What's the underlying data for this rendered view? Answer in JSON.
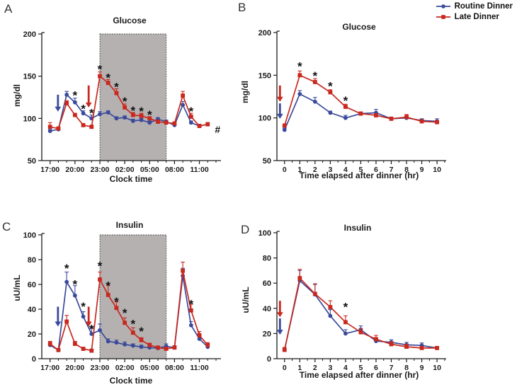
{
  "figure": {
    "background": "#ffffff",
    "shade_color": "#b5b1b1",
    "axis_color": "#1a1a1a",
    "legend": {
      "items": [
        {
          "label": "Routine Dinner",
          "color": "#3A4A9B",
          "marker": "circle"
        },
        {
          "label": "Late Dinner",
          "color": "#C8281E",
          "marker": "square"
        }
      ]
    }
  },
  "chart_data": [
    {
      "panel_label": "A",
      "type": "line",
      "title": "Glucose",
      "xlabel": "Clock time",
      "ylabel": "mg/dl",
      "ylim": [
        50,
        200
      ],
      "yticks": [
        50,
        100,
        150,
        200
      ],
      "xlim": [
        -1.0,
        20.6
      ],
      "xticks": [
        {
          "x": 0,
          "label": "17:00"
        },
        {
          "x": 3,
          "label": "20:00"
        },
        {
          "x": 6,
          "label": "23:00"
        },
        {
          "x": 9,
          "label": "02:00"
        },
        {
          "x": 12,
          "label": "05:00"
        },
        {
          "x": 15,
          "label": "08:00"
        },
        {
          "x": 18,
          "label": "11:00"
        }
      ],
      "x_minor": {
        "from": 0,
        "to": 20,
        "step": 1
      },
      "x": [
        0,
        1,
        2,
        3,
        4,
        5,
        6,
        7,
        8,
        9,
        10,
        11,
        12,
        13,
        14,
        15,
        16,
        17,
        18,
        19
      ],
      "shade": {
        "x0": 6,
        "x1": 14
      },
      "series": [
        {
          "name": "Routine Dinner",
          "color": "#3A4A9B",
          "marker": "circle",
          "values": [
            85,
            87,
            128,
            119,
            106,
            100,
            105,
            107,
            100,
            101,
            97,
            98,
            95,
            99,
            96,
            92,
            116,
            95,
            91,
            93
          ],
          "err": [
            2,
            2,
            4,
            5,
            3,
            4,
            3,
            2,
            2,
            2,
            2,
            2,
            2,
            2,
            2,
            2,
            4,
            2,
            2,
            2
          ]
        },
        {
          "name": "Late Dinner",
          "color": "#C8281E",
          "marker": "square",
          "values": [
            90,
            88,
            118,
            104,
            92,
            90,
            150,
            142,
            130,
            113,
            104,
            103,
            100,
            96,
            95,
            94,
            127,
            102,
            91,
            93
          ],
          "err": [
            5,
            2,
            3,
            2,
            2,
            2,
            5,
            4,
            5,
            4,
            3,
            3,
            2,
            2,
            2,
            2,
            5,
            4,
            2,
            2
          ]
        }
      ],
      "asterisks": [
        {
          "x": 3,
          "y": 130
        },
        {
          "x": 4,
          "y": 114
        },
        {
          "x": 5,
          "y": 109
        },
        {
          "x": 6,
          "y": 161
        },
        {
          "x": 7,
          "y": 151
        },
        {
          "x": 8,
          "y": 140
        },
        {
          "x": 9,
          "y": 123
        },
        {
          "x": 10,
          "y": 112
        },
        {
          "x": 11,
          "y": 111
        },
        {
          "x": 12,
          "y": 107
        },
        {
          "x": 17,
          "y": 111
        }
      ],
      "arrows": [
        {
          "series": "Routine Dinner",
          "x": 0.95,
          "y_from": 128,
          "y_to": 108
        },
        {
          "series": "Late Dinner",
          "x": 4.65,
          "y_from": 139,
          "y_to": 113
        }
      ],
      "annotations": [
        {
          "x": 20.2,
          "y": 87,
          "text": "#"
        }
      ]
    },
    {
      "panel_label": "B",
      "type": "line",
      "title": "Glucose",
      "xlabel": "Time elapsed after dinner (hr)",
      "ylabel": "mg/dl",
      "ylim": [
        50,
        200
      ],
      "yticks": [
        50,
        100,
        150,
        200
      ],
      "xlim": [
        -0.5,
        10.6
      ],
      "xticks": [
        {
          "x": 0,
          "label": "0"
        },
        {
          "x": 1,
          "label": "1"
        },
        {
          "x": 2,
          "label": "2"
        },
        {
          "x": 3,
          "label": "3"
        },
        {
          "x": 4,
          "label": "4"
        },
        {
          "x": 5,
          "label": "5"
        },
        {
          "x": 6,
          "label": "6"
        },
        {
          "x": 7,
          "label": "7"
        },
        {
          "x": 8,
          "label": "8"
        },
        {
          "x": 9,
          "label": "9"
        },
        {
          "x": 10,
          "label": "10"
        }
      ],
      "x_minor": {
        "from": 0.5,
        "to": 10.5,
        "step": 1
      },
      "x": [
        0,
        1,
        2,
        3,
        4,
        5,
        6,
        7,
        8,
        9,
        10
      ],
      "shade": null,
      "series": [
        {
          "name": "Routine Dinner",
          "color": "#3A4A9B",
          "marker": "circle",
          "values": [
            86,
            128,
            119,
            106,
            100,
            105,
            106,
            99,
            100,
            97,
            96
          ],
          "err": [
            2,
            4,
            5,
            2,
            3,
            2,
            4,
            2,
            2,
            2,
            3
          ]
        },
        {
          "name": "Late Dinner",
          "color": "#C8281E",
          "marker": "square",
          "values": [
            91,
            150,
            142,
            130,
            113,
            105,
            103,
            99,
            101,
            96,
            95
          ],
          "err": [
            2,
            5,
            4,
            3,
            3,
            2,
            2,
            2,
            3,
            2,
            2
          ]
        }
      ],
      "asterisks": [
        {
          "x": 1,
          "y": 163
        },
        {
          "x": 2,
          "y": 152
        },
        {
          "x": 3,
          "y": 140
        },
        {
          "x": 4,
          "y": 123
        }
      ],
      "arrows": [
        {
          "series": "Late Dinner",
          "x": -0.3,
          "y_from": 138,
          "y_to": 119
        },
        {
          "series": "Routine Dinner",
          "x": -0.3,
          "y_from": 117,
          "y_to": 99
        }
      ],
      "annotations": []
    },
    {
      "panel_label": "C",
      "type": "line",
      "title": "Insulin",
      "xlabel": "Clock time",
      "ylabel": "uU/mL",
      "ylim": [
        0,
        100
      ],
      "yticks": [
        0,
        20,
        40,
        60,
        80,
        100
      ],
      "xlim": [
        -1.0,
        20.6
      ],
      "xticks": [
        {
          "x": 0,
          "label": "17:00"
        },
        {
          "x": 3,
          "label": "20:00"
        },
        {
          "x": 6,
          "label": "23:00"
        },
        {
          "x": 9,
          "label": "02:00"
        },
        {
          "x": 12,
          "label": "05:00"
        },
        {
          "x": 15,
          "label": "08:00"
        },
        {
          "x": 18,
          "label": "11:00"
        }
      ],
      "x_minor": {
        "from": 0,
        "to": 20,
        "step": 1
      },
      "x": [
        0,
        1,
        2,
        3,
        4,
        5,
        6,
        7,
        8,
        9,
        10,
        11,
        12,
        13,
        14,
        15,
        16,
        17,
        18,
        19
      ],
      "shade": {
        "x0": 6,
        "x1": 14
      },
      "series": [
        {
          "name": "Routine Dinner",
          "color": "#3A4A9B",
          "marker": "circle",
          "values": [
            11,
            7,
            62,
            51,
            34,
            20,
            23,
            14,
            13,
            11.5,
            10.5,
            9.5,
            9,
            8.5,
            10,
            9,
            67,
            27,
            16,
            9.5
          ],
          "err": [
            2,
            1,
            8,
            8,
            4,
            5,
            5,
            2,
            2,
            2,
            1.5,
            1.5,
            1,
            1,
            2,
            1.5,
            6,
            3,
            3,
            1.5
          ]
        },
        {
          "name": "Late Dinner",
          "color": "#C8281E",
          "marker": "square",
          "values": [
            12,
            7,
            30,
            12,
            8,
            6.5,
            64,
            51.5,
            41,
            29,
            21,
            15,
            11,
            9,
            8,
            9,
            71,
            39,
            19,
            11
          ],
          "err": [
            2,
            1,
            5,
            2,
            1,
            1,
            6,
            8,
            5,
            4,
            4,
            2,
            1.5,
            1,
            1,
            1.5,
            7,
            5,
            3,
            2
          ]
        }
      ],
      "asterisks": [
        {
          "x": 2,
          "y": 75
        },
        {
          "x": 3,
          "y": 62
        },
        {
          "x": 4,
          "y": 44
        },
        {
          "x": 5,
          "y": 26
        },
        {
          "x": 6,
          "y": 77
        },
        {
          "x": 7,
          "y": 61
        },
        {
          "x": 8,
          "y": 48
        },
        {
          "x": 9,
          "y": 39
        },
        {
          "x": 10,
          "y": 30
        },
        {
          "x": 11,
          "y": 24
        },
        {
          "x": 17,
          "y": 46
        }
      ],
      "arrows": [
        {
          "series": "Routine Dinner",
          "x": 0.95,
          "y_from": 42,
          "y_to": 26
        },
        {
          "series": "Late Dinner",
          "x": 4.65,
          "y_from": 42,
          "y_to": 26
        }
      ],
      "annotations": []
    },
    {
      "panel_label": "D",
      "type": "line",
      "title": "Insulin",
      "xlabel": "Time elapsed after dinner (hr)",
      "ylabel": "uU/mL",
      "ylim": [
        0,
        100
      ],
      "yticks": [
        0,
        20,
        40,
        60,
        80,
        100
      ],
      "xlim": [
        -0.5,
        10.6
      ],
      "xticks": [
        {
          "x": 0,
          "label": "0"
        },
        {
          "x": 1,
          "label": "1"
        },
        {
          "x": 2,
          "label": "2"
        },
        {
          "x": 3,
          "label": "3"
        },
        {
          "x": 4,
          "label": "4"
        },
        {
          "x": 5,
          "label": "5"
        },
        {
          "x": 6,
          "label": "6"
        },
        {
          "x": 7,
          "label": "7"
        },
        {
          "x": 8,
          "label": "8"
        },
        {
          "x": 9,
          "label": "9"
        },
        {
          "x": 10,
          "label": "10"
        }
      ],
      "x_minor": {
        "from": 0.5,
        "to": 10.5,
        "step": 1
      },
      "x": [
        0,
        1,
        2,
        3,
        4,
        5,
        6,
        7,
        8,
        9,
        10
      ],
      "shade": null,
      "series": [
        {
          "name": "Routine Dinner",
          "color": "#3A4A9B",
          "marker": "circle",
          "values": [
            7,
            62,
            51,
            34,
            20,
            23,
            14,
            13,
            11,
            10.5,
            8.5
          ],
          "err": [
            1,
            8,
            8,
            5,
            3,
            3,
            2,
            2,
            2,
            2,
            1
          ]
        },
        {
          "name": "Late Dinner",
          "color": "#C8281E",
          "marker": "square",
          "values": [
            7,
            64,
            51.5,
            41,
            29,
            21,
            15.5,
            11.5,
            9.5,
            8.5,
            8.5
          ],
          "err": [
            2,
            7,
            8,
            5,
            5,
            3,
            3,
            2,
            2,
            1,
            1
          ]
        }
      ],
      "asterisks": [
        {
          "x": 4,
          "y": 43
        }
      ],
      "arrows": [
        {
          "series": "Late Dinner",
          "x": -0.3,
          "y_from": 46,
          "y_to": 33
        },
        {
          "series": "Routine Dinner",
          "x": -0.3,
          "y_from": 32,
          "y_to": 19
        }
      ],
      "annotations": []
    }
  ]
}
